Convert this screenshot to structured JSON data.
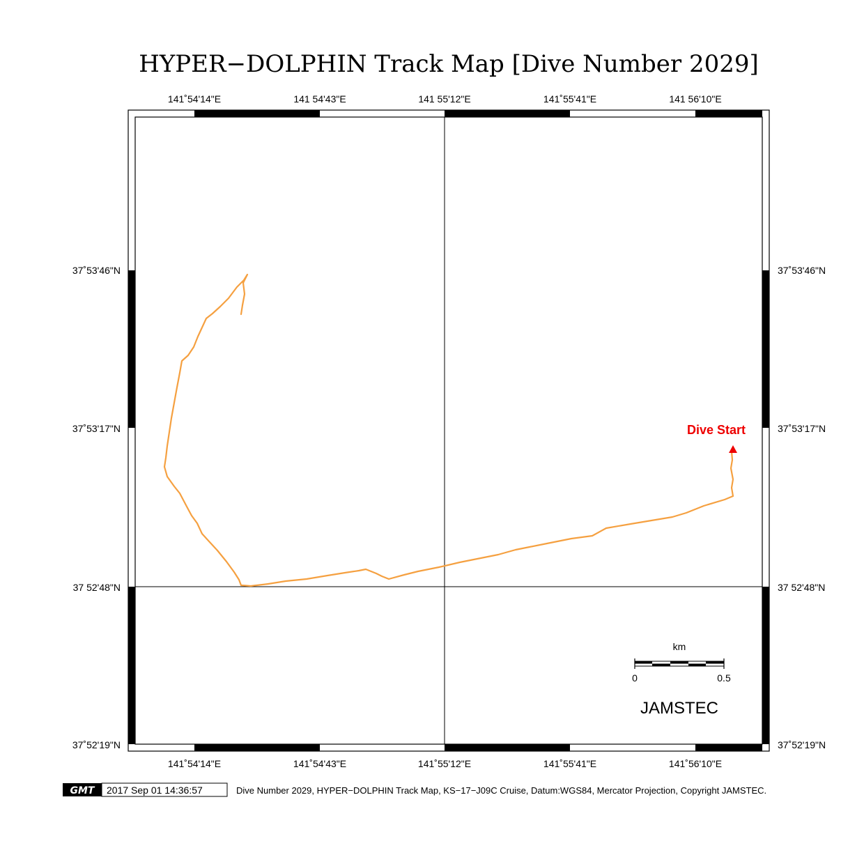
{
  "title": "HYPER−DOLPHIN Track Map [Dive Number 2029]",
  "top_ticks": [
    "141˚54'14\"E",
    "141 54'43\"E",
    "141 55'12\"E",
    "141˚55'41\"E",
    "141 56'10\"E"
  ],
  "bottom_ticks": [
    "141˚54'14\"E",
    "141˚54'43\"E",
    "141˚55'12\"E",
    "141˚55'41\"E",
    "141˚56'10\"E"
  ],
  "left_ticks": [
    "37˚53'46\"N",
    "37˚53'17\"N",
    "37 52'48\"N",
    "37˚52'19\"N"
  ],
  "right_ticks": [
    "37˚53'46\"N",
    "37˚53'17\"N",
    "37 52'48\"N",
    "37˚52'19\"N"
  ],
  "dive_start_label": "Dive Start",
  "scale": {
    "unit": "km",
    "min_label": "0",
    "max_label": "0.5"
  },
  "organization": "JAMSTEC",
  "footer": {
    "gmt_logo": "GMT",
    "timestamp": "2017 Sep 01 14:36:57",
    "caption": "Dive Number 2029, HYPER−DOLPHIN Track Map, KS−17−J09C Cruise, Datum:WGS84, Mercator Projection, Copyright JAMSTEC."
  },
  "colors": {
    "track": "#f5a040",
    "marker": "#ee0000"
  }
}
